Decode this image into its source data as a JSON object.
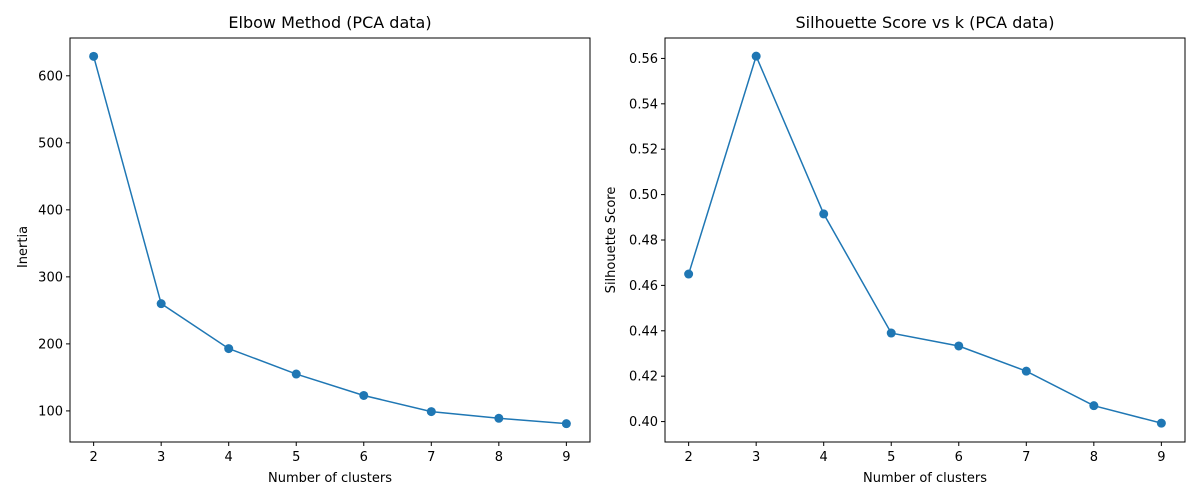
{
  "chart_data": [
    {
      "type": "line",
      "title": "Elbow Method (PCA data)",
      "xlabel": "Number of clusters",
      "ylabel": "Inertia",
      "x": [
        2,
        3,
        4,
        5,
        6,
        7,
        8,
        9
      ],
      "series": [
        {
          "values": [
            629,
            260,
            193,
            155,
            123,
            99,
            89,
            81
          ],
          "color": "#1f77b4"
        }
      ],
      "xticks": [
        "2",
        "3",
        "4",
        "5",
        "6",
        "7",
        "8",
        "9"
      ],
      "yticks": [
        "100",
        "200",
        "300",
        "400",
        "500",
        "600"
      ],
      "ylim": [
        53.6,
        656.4
      ],
      "xlim": [
        1.65,
        9.35
      ],
      "grid": false,
      "marker": "circle"
    },
    {
      "type": "line",
      "title": "Silhouette Score vs k (PCA data)",
      "xlabel": "Number of clusters",
      "ylabel": "Silhouette Score",
      "x": [
        2,
        3,
        4,
        5,
        6,
        7,
        8,
        9
      ],
      "series": [
        {
          "values": [
            0.465,
            0.561,
            0.4915,
            0.439,
            0.4333,
            0.4222,
            0.407,
            0.3993
          ],
          "color": "#1f77b4"
        }
      ],
      "xticks": [
        "2",
        "3",
        "4",
        "5",
        "6",
        "7",
        "8",
        "9"
      ],
      "yticks": [
        "0.40",
        "0.42",
        "0.44",
        "0.46",
        "0.48",
        "0.50",
        "0.52",
        "0.54",
        "0.56"
      ],
      "ylim": [
        0.391,
        0.569
      ],
      "xlim": [
        1.65,
        9.35
      ],
      "grid": false,
      "marker": "circle"
    }
  ]
}
